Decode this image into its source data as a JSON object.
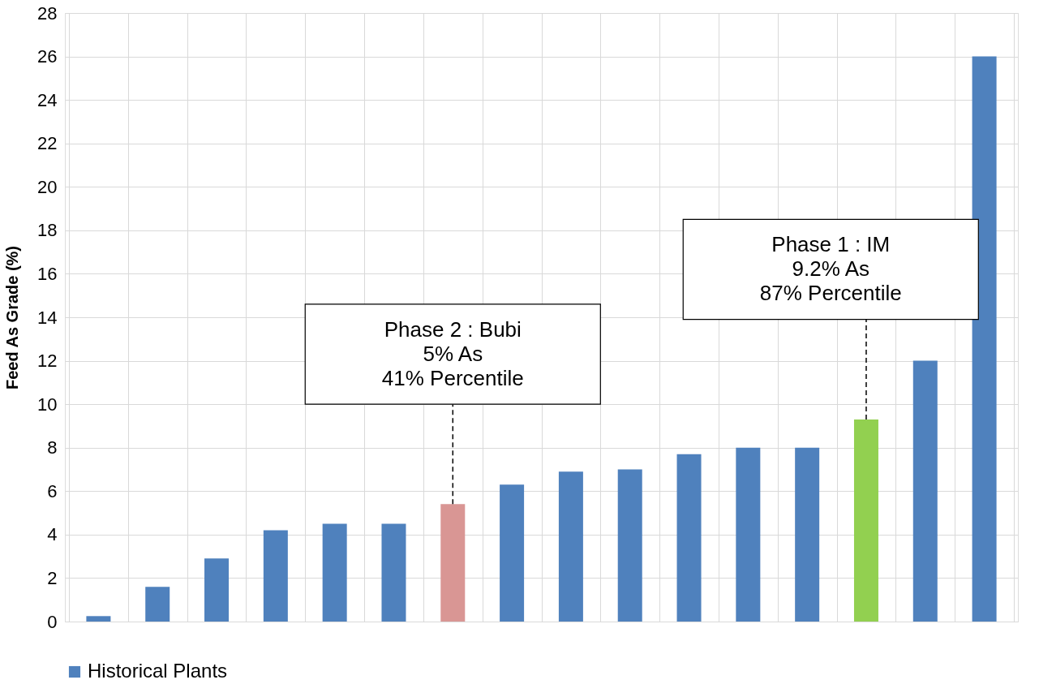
{
  "chart_data": {
    "type": "bar",
    "ylabel": "Feed  As Grade (%)",
    "categories": [
      null,
      null,
      null,
      null,
      null,
      null,
      null,
      null,
      null,
      null,
      null,
      null,
      null,
      null,
      null,
      null
    ],
    "series": [
      {
        "name": "Historical Plants",
        "color": "#4f81bd",
        "values": [
          0.25,
          1.6,
          2.9,
          4.2,
          4.5,
          4.5,
          5.4,
          6.3,
          6.9,
          7.0,
          7.7,
          8.0,
          8.0,
          9.3,
          12.0,
          26.0
        ],
        "colors": [
          "#4f81bd",
          "#4f81bd",
          "#4f81bd",
          "#4f81bd",
          "#4f81bd",
          "#4f81bd",
          "#d99694",
          "#4f81bd",
          "#4f81bd",
          "#4f81bd",
          "#4f81bd",
          "#4f81bd",
          "#4f81bd",
          "#92d050",
          "#4f81bd",
          "#4f81bd"
        ]
      }
    ],
    "ylim": [
      0,
      28
    ],
    "yticks": [
      0,
      2,
      4,
      6,
      8,
      10,
      12,
      14,
      16,
      18,
      20,
      22,
      24,
      26,
      28
    ],
    "grid": true,
    "legend": "bottom",
    "annotations": [
      "Phase 2 : Bubi\n5% As\n41% Percentile",
      "Phase 1 : IM\n9.2% As\n87% Percentile"
    ]
  }
}
